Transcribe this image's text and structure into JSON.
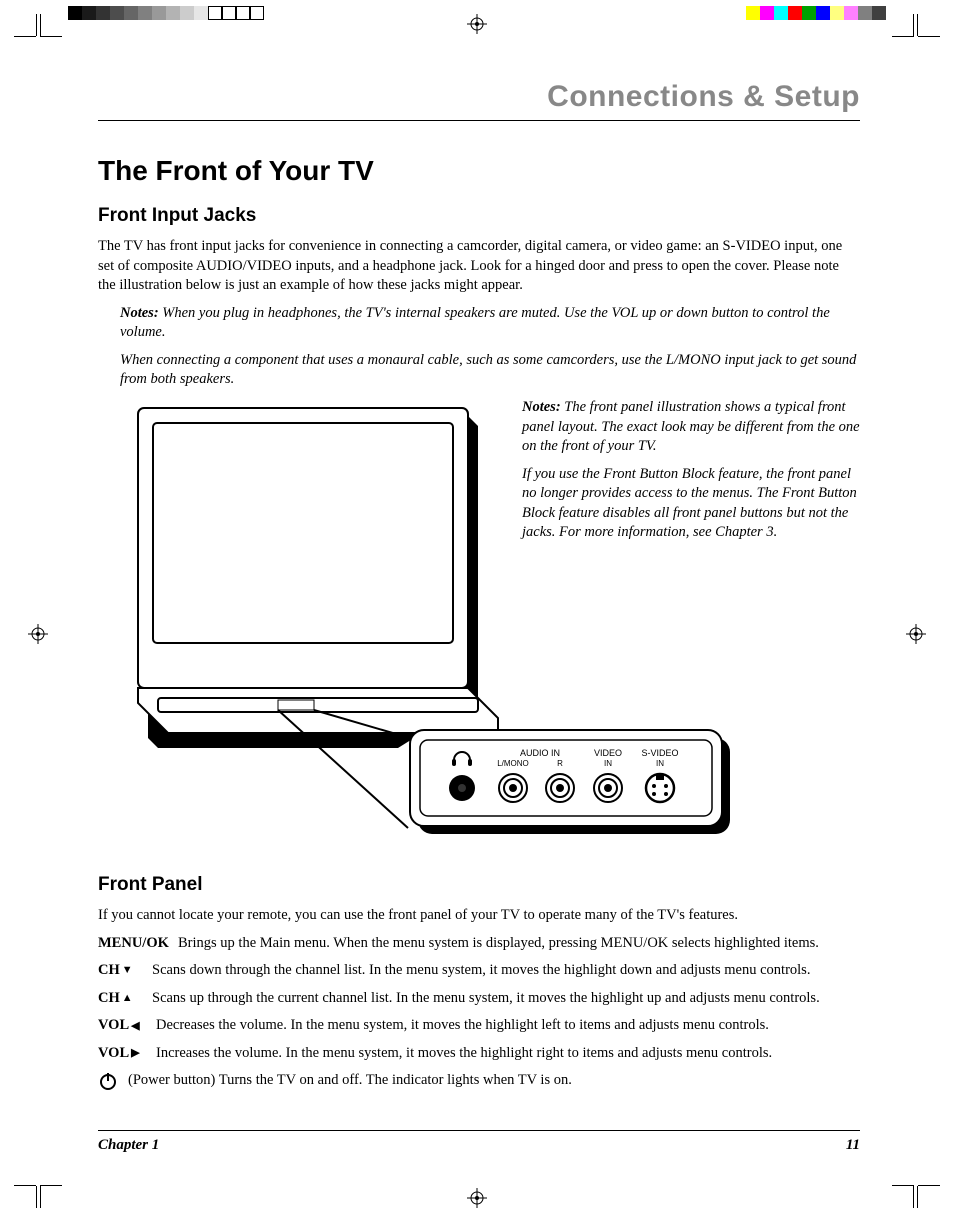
{
  "header": {
    "section_title": "Connections & Setup"
  },
  "title": "The Front of Your TV",
  "sub1": {
    "heading": "Front Input Jacks",
    "body": "The TV has front input jacks for convenience in connecting a camcorder, digital camera, or video game: an S-VIDEO input, one set of composite AUDIO/VIDEO inputs, and a headphone jack. Look for a hinged door and press to open the cover. Please note the illustration below is just an example of how these jacks might appear.",
    "notes_label": "Notes:",
    "note1_rest": " When you plug in headphones, the TV's internal speakers are muted. Use the VOL up or down button to control the volume.",
    "note2": "When connecting a component that uses a monaural cable, such as some camcorders, use the L/MONO input jack to get sound from both speakers."
  },
  "side_notes": {
    "label": "Notes:",
    "n1_rest": " The front panel illustration shows a typical front panel layout. The exact look may be different from the one on the front of your TV.",
    "n2": "If you use the Front Button Block feature, the front panel no longer provides access to the menus. The Front Button Block feature disables all front panel buttons but not the jacks. For more information, see Chapter 3."
  },
  "sub2": {
    "heading": "Front Panel",
    "intro": "If you cannot locate your remote, you can use the front panel of your TV to operate many of the TV's features.",
    "rows": [
      {
        "label": "MENU/OK",
        "arrow": "",
        "desc": "Brings up the Main menu. When the menu system is displayed, pressing MENU/OK selects highlighted items."
      },
      {
        "label": "CH",
        "arrow": "▼",
        "desc": "Scans down through the channel list. In the menu system, it moves the highlight down and adjusts menu controls."
      },
      {
        "label": "CH",
        "arrow": "▲",
        "desc": "Scans up through the current channel list. In the menu system, it moves the highlight up and adjusts menu controls."
      },
      {
        "label": "VOL",
        "arrow": "◀",
        "desc": "Decreases the volume. In the menu system, it moves the highlight left to items and adjusts menu controls."
      },
      {
        "label": "VOL",
        "arrow": "▶",
        "desc": "Increases the volume. In the menu system, it moves the highlight right to items and adjusts menu controls."
      }
    ],
    "power_desc": "(Power button) Turns the TV on and off. The indicator lights when TV is on."
  },
  "jack_labels": {
    "audio_in": "AUDIO IN",
    "lmono": "L/MONO",
    "r": "R",
    "video_in_top": "VIDEO",
    "video_in_bot": "IN",
    "svideo_top": "S-VIDEO",
    "svideo_bot": "IN"
  },
  "footer": {
    "chapter": "Chapter 1",
    "page": "11"
  },
  "colorbar_left": [
    "#000000",
    "#1a1a1a",
    "#333333",
    "#4d4d4d",
    "#666666",
    "#808080",
    "#999999",
    "#b3b3b3",
    "#cccccc",
    "#e6e6e6",
    "#ffffff",
    "#ffffff",
    "#ffffff",
    "#ffffff"
  ],
  "colorbar_right": [
    "#ffff00",
    "#ff00ff",
    "#00ffff",
    "#ff0000",
    "#00a000",
    "#0000ff",
    "#ffff80",
    "#ff80ff",
    "#808080",
    "#404040"
  ]
}
